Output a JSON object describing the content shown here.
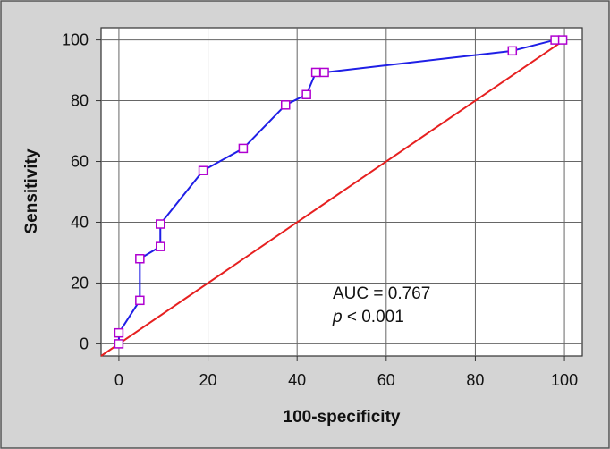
{
  "chart_data": {
    "type": "line",
    "xlabel": "100-specificity",
    "ylabel": "Sensitivity",
    "xlim": [
      -4,
      104
    ],
    "ylim": [
      -4,
      104
    ],
    "x_ticks": [
      "0",
      "20",
      "40",
      "60",
      "80",
      "100"
    ],
    "y_ticks": [
      "0",
      "20",
      "40",
      "60",
      "80",
      "100"
    ],
    "grid": true,
    "series": [
      {
        "style": "roc-curve",
        "color": "#1f1fe6",
        "marker_color": "#b000d0",
        "x": [
          0,
          0,
          4.7,
          4.7,
          9.3,
          9.3,
          18.9,
          27.9,
          37.4,
          42.1,
          44.2,
          46.1,
          88.3,
          97.9,
          99.6
        ],
        "y": [
          0,
          3.6,
          14.3,
          28.0,
          32.0,
          39.4,
          57.0,
          64.3,
          78.6,
          82.0,
          89.3,
          89.3,
          96.4,
          100,
          100
        ]
      },
      {
        "style": "reference-diagonal",
        "color": "#e62020",
        "x": [
          -4,
          100
        ],
        "y": [
          -4,
          100
        ]
      }
    ],
    "annotation": {
      "auc_text": "AUC = 0.767",
      "p_letter": "p",
      "p_rest": " < 0.001"
    }
  }
}
